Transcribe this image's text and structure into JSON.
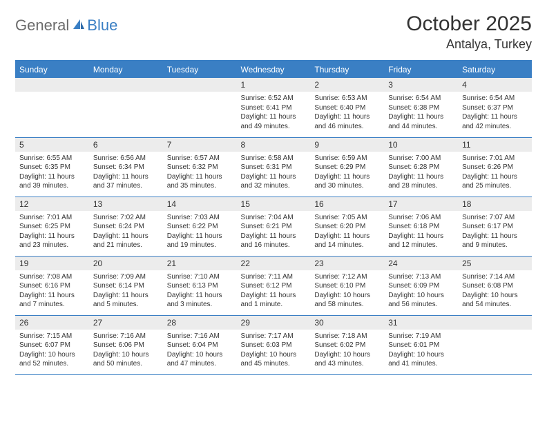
{
  "brand": {
    "general": "General",
    "blue": "Blue"
  },
  "title": "October 2025",
  "location": "Antalya, Turkey",
  "colors": {
    "accent": "#3a7fc4",
    "header_bg": "#3a7fc4",
    "daynum_bg": "#ececec",
    "text": "#333333"
  },
  "day_headers": [
    "Sunday",
    "Monday",
    "Tuesday",
    "Wednesday",
    "Thursday",
    "Friday",
    "Saturday"
  ],
  "weeks": [
    [
      null,
      null,
      null,
      {
        "n": "1",
        "sr": "6:52 AM",
        "ss": "6:41 PM",
        "dl": "11 hours and 49 minutes."
      },
      {
        "n": "2",
        "sr": "6:53 AM",
        "ss": "6:40 PM",
        "dl": "11 hours and 46 minutes."
      },
      {
        "n": "3",
        "sr": "6:54 AM",
        "ss": "6:38 PM",
        "dl": "11 hours and 44 minutes."
      },
      {
        "n": "4",
        "sr": "6:54 AM",
        "ss": "6:37 PM",
        "dl": "11 hours and 42 minutes."
      }
    ],
    [
      {
        "n": "5",
        "sr": "6:55 AM",
        "ss": "6:35 PM",
        "dl": "11 hours and 39 minutes."
      },
      {
        "n": "6",
        "sr": "6:56 AM",
        "ss": "6:34 PM",
        "dl": "11 hours and 37 minutes."
      },
      {
        "n": "7",
        "sr": "6:57 AM",
        "ss": "6:32 PM",
        "dl": "11 hours and 35 minutes."
      },
      {
        "n": "8",
        "sr": "6:58 AM",
        "ss": "6:31 PM",
        "dl": "11 hours and 32 minutes."
      },
      {
        "n": "9",
        "sr": "6:59 AM",
        "ss": "6:29 PM",
        "dl": "11 hours and 30 minutes."
      },
      {
        "n": "10",
        "sr": "7:00 AM",
        "ss": "6:28 PM",
        "dl": "11 hours and 28 minutes."
      },
      {
        "n": "11",
        "sr": "7:01 AM",
        "ss": "6:26 PM",
        "dl": "11 hours and 25 minutes."
      }
    ],
    [
      {
        "n": "12",
        "sr": "7:01 AM",
        "ss": "6:25 PM",
        "dl": "11 hours and 23 minutes."
      },
      {
        "n": "13",
        "sr": "7:02 AM",
        "ss": "6:24 PM",
        "dl": "11 hours and 21 minutes."
      },
      {
        "n": "14",
        "sr": "7:03 AM",
        "ss": "6:22 PM",
        "dl": "11 hours and 19 minutes."
      },
      {
        "n": "15",
        "sr": "7:04 AM",
        "ss": "6:21 PM",
        "dl": "11 hours and 16 minutes."
      },
      {
        "n": "16",
        "sr": "7:05 AM",
        "ss": "6:20 PM",
        "dl": "11 hours and 14 minutes."
      },
      {
        "n": "17",
        "sr": "7:06 AM",
        "ss": "6:18 PM",
        "dl": "11 hours and 12 minutes."
      },
      {
        "n": "18",
        "sr": "7:07 AM",
        "ss": "6:17 PM",
        "dl": "11 hours and 9 minutes."
      }
    ],
    [
      {
        "n": "19",
        "sr": "7:08 AM",
        "ss": "6:16 PM",
        "dl": "11 hours and 7 minutes."
      },
      {
        "n": "20",
        "sr": "7:09 AM",
        "ss": "6:14 PM",
        "dl": "11 hours and 5 minutes."
      },
      {
        "n": "21",
        "sr": "7:10 AM",
        "ss": "6:13 PM",
        "dl": "11 hours and 3 minutes."
      },
      {
        "n": "22",
        "sr": "7:11 AM",
        "ss": "6:12 PM",
        "dl": "11 hours and 1 minute."
      },
      {
        "n": "23",
        "sr": "7:12 AM",
        "ss": "6:10 PM",
        "dl": "10 hours and 58 minutes."
      },
      {
        "n": "24",
        "sr": "7:13 AM",
        "ss": "6:09 PM",
        "dl": "10 hours and 56 minutes."
      },
      {
        "n": "25",
        "sr": "7:14 AM",
        "ss": "6:08 PM",
        "dl": "10 hours and 54 minutes."
      }
    ],
    [
      {
        "n": "26",
        "sr": "7:15 AM",
        "ss": "6:07 PM",
        "dl": "10 hours and 52 minutes."
      },
      {
        "n": "27",
        "sr": "7:16 AM",
        "ss": "6:06 PM",
        "dl": "10 hours and 50 minutes."
      },
      {
        "n": "28",
        "sr": "7:16 AM",
        "ss": "6:04 PM",
        "dl": "10 hours and 47 minutes."
      },
      {
        "n": "29",
        "sr": "7:17 AM",
        "ss": "6:03 PM",
        "dl": "10 hours and 45 minutes."
      },
      {
        "n": "30",
        "sr": "7:18 AM",
        "ss": "6:02 PM",
        "dl": "10 hours and 43 minutes."
      },
      {
        "n": "31",
        "sr": "7:19 AM",
        "ss": "6:01 PM",
        "dl": "10 hours and 41 minutes."
      },
      null
    ]
  ],
  "labels": {
    "sunrise": "Sunrise: ",
    "sunset": "Sunset: ",
    "daylight": "Daylight: "
  }
}
